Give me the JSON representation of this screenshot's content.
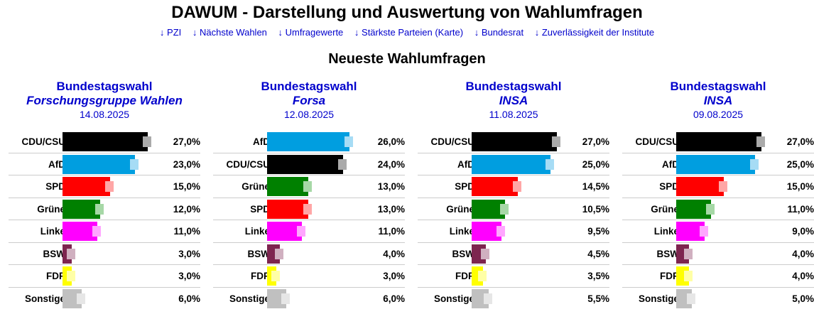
{
  "header": {
    "title": "DAWUM - Darstellung und Auswertung von Wahlumfragen",
    "nav": [
      "↓ PZI",
      "↓ Nächste Wahlen",
      "↓ Umfragewerte",
      "↓ Stärkste Parteien (Karte)",
      "↓ Bundesrat",
      "↓ Zuverlässigkeit der Institute"
    ]
  },
  "section_title": "Neueste Wahlumfragen",
  "chart_data": [
    {
      "type": "bar",
      "orientation": "horizontal",
      "title": "Bundestagswahl",
      "institute": "Forschungsgruppe Wahlen",
      "date": "14.08.2025",
      "categories": [
        "CDU/CSU",
        "AfD",
        "SPD",
        "Grüne",
        "Linke",
        "BSW",
        "FDP",
        "Sonstige"
      ],
      "values": [
        27.0,
        23.0,
        15.0,
        12.0,
        11.0,
        3.0,
        3.0,
        6.0
      ],
      "labels": [
        "27,0%",
        "23,0%",
        "15,0%",
        "12,0%",
        "11,0%",
        "3,0%",
        "3,0%",
        "6,0%"
      ],
      "unit": "%"
    },
    {
      "type": "bar",
      "orientation": "horizontal",
      "title": "Bundestagswahl",
      "institute": "Forsa",
      "date": "12.08.2025",
      "categories": [
        "AfD",
        "CDU/CSU",
        "Grüne",
        "SPD",
        "Linke",
        "BSW",
        "FDP",
        "Sonstige"
      ],
      "values": [
        26.0,
        24.0,
        13.0,
        13.0,
        11.0,
        4.0,
        3.0,
        6.0
      ],
      "labels": [
        "26,0%",
        "24,0%",
        "13,0%",
        "13,0%",
        "11,0%",
        "4,0%",
        "3,0%",
        "6,0%"
      ],
      "unit": "%"
    },
    {
      "type": "bar",
      "orientation": "horizontal",
      "title": "Bundestagswahl",
      "institute": "INSA",
      "date": "11.08.2025",
      "categories": [
        "CDU/CSU",
        "AfD",
        "SPD",
        "Grüne",
        "Linke",
        "BSW",
        "FDP",
        "Sonstige"
      ],
      "values": [
        27.0,
        25.0,
        14.5,
        10.5,
        9.5,
        4.5,
        3.5,
        5.5
      ],
      "labels": [
        "27,0%",
        "25,0%",
        "14,5%",
        "10,5%",
        "9,5%",
        "4,5%",
        "3,5%",
        "5,5%"
      ],
      "unit": "%"
    },
    {
      "type": "bar",
      "orientation": "horizontal",
      "title": "Bundestagswahl",
      "institute": "INSA",
      "date": "09.08.2025",
      "categories": [
        "CDU/CSU",
        "AfD",
        "SPD",
        "Grüne",
        "Linke",
        "BSW",
        "FDP",
        "Sonstige"
      ],
      "values": [
        27.0,
        25.0,
        15.0,
        11.0,
        9.0,
        4.0,
        4.0,
        5.0
      ],
      "labels": [
        "27,0%",
        "25,0%",
        "15,0%",
        "11,0%",
        "9,0%",
        "4,0%",
        "4,0%",
        "5,0%"
      ],
      "unit": "%"
    }
  ],
  "party_colors": {
    "CDU/CSU": "#000000",
    "AfD": "#009ee0",
    "SPD": "#ff0000",
    "Grüne": "#008000",
    "Linke": "#ff00ff",
    "BSW": "#7d254f",
    "FDP": "#ffff00",
    "Sonstige": "#c0c0c0"
  },
  "ghost_colors": {
    "CDU/CSU": "#aaaaaa",
    "AfD": "#a6dcf5",
    "SPD": "#ffa6a6",
    "Grüne": "#a6d8a6",
    "Linke": "#ffa6ff",
    "BSW": "#d0b0c0",
    "FDP": "#ffffa6",
    "Sonstige": "#e6e6e6"
  }
}
